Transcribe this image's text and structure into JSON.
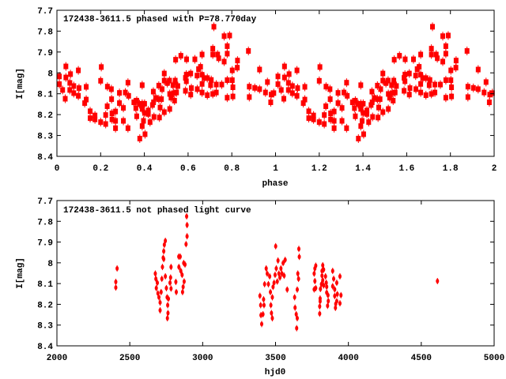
{
  "colors": {
    "points": "#ff0000",
    "axes": "#000000",
    "background": "#ffffff"
  },
  "chart_data": [
    {
      "type": "scatter",
      "title": "172438-3611.5 phased with P=78.770day",
      "xlabel": "phase",
      "ylabel": "I[mag]",
      "xlim": [
        0,
        2
      ],
      "ylim": [
        7.7,
        8.4
      ],
      "y_inverted": true,
      "xticks": [
        "0",
        "0.2",
        "0.4",
        "0.6",
        "0.8",
        "1",
        "1.2",
        "1.4",
        "1.6",
        "1.8",
        "2"
      ],
      "xtick_values": [
        0,
        0.2,
        0.4,
        0.6,
        0.8,
        1,
        1.2,
        1.4,
        1.6,
        1.8,
        2
      ],
      "yticks": [
        "7.7",
        "7.8",
        "7.9",
        "8",
        "8.1",
        "8.2",
        "8.3",
        "8.4"
      ],
      "ytick_values": [
        7.7,
        7.8,
        7.9,
        8.0,
        8.1,
        8.2,
        8.3,
        8.4
      ],
      "grid": false,
      "phase_repeat": 1,
      "points": [
        [
          0.011,
          8.017
        ],
        [
          0.011,
          8.054
        ],
        [
          0.026,
          8.082
        ],
        [
          0.038,
          8.124
        ],
        [
          0.041,
          7.969
        ],
        [
          0.041,
          8.022
        ],
        [
          0.059,
          8.048
        ],
        [
          0.062,
          8.006
        ],
        [
          0.059,
          8.082
        ],
        [
          0.077,
          8.063
        ],
        [
          0.077,
          8.097
        ],
        [
          0.098,
          7.988
        ],
        [
          0.101,
          8.073
        ],
        [
          0.098,
          8.11
        ],
        [
          0.134,
          8.067
        ],
        [
          0.134,
          8.128
        ],
        [
          0.127,
          8.145
        ],
        [
          0.152,
          8.184
        ],
        [
          0.152,
          8.217
        ],
        [
          0.174,
          8.204
        ],
        [
          0.174,
          8.223
        ],
        [
          0.2,
          8.038
        ],
        [
          0.203,
          7.972
        ],
        [
          0.2,
          8.236
        ],
        [
          0.223,
          8.202
        ],
        [
          0.223,
          8.245
        ],
        [
          0.23,
          8.16
        ],
        [
          0.231,
          8.066
        ],
        [
          0.249,
          8.078
        ],
        [
          0.25,
          8.126
        ],
        [
          0.252,
          8.194
        ],
        [
          0.252,
          8.223
        ],
        [
          0.268,
          8.185
        ],
        [
          0.268,
          8.23
        ],
        [
          0.268,
          8.265
        ],
        [
          0.286,
          8.096
        ],
        [
          0.286,
          8.145
        ],
        [
          0.304,
          8.168
        ],
        [
          0.304,
          8.23
        ],
        [
          0.325,
          8.047
        ],
        [
          0.325,
          8.265
        ],
        [
          0.313,
          8.094
        ],
        [
          0.328,
          8.11
        ],
        [
          0.352,
          8.141
        ],
        [
          0.365,
          8.133
        ],
        [
          0.365,
          8.208
        ],
        [
          0.361,
          8.169
        ],
        [
          0.378,
          8.15
        ],
        [
          0.379,
          8.315
        ],
        [
          0.39,
          8.059
        ],
        [
          0.39,
          8.148
        ],
        [
          0.39,
          8.173
        ],
        [
          0.39,
          8.255
        ],
        [
          0.396,
          8.23
        ],
        [
          0.403,
          8.294
        ],
        [
          0.401,
          8.148
        ],
        [
          0.401,
          8.192
        ],
        [
          0.418,
          8.18
        ],
        [
          0.418,
          8.197
        ],
        [
          0.426,
          8.236
        ],
        [
          0.437,
          8.154
        ],
        [
          0.441,
          8.09
        ],
        [
          0.442,
          8.141
        ],
        [
          0.444,
          8.211
        ],
        [
          0.452,
          8.12
        ],
        [
          0.466,
          8.061
        ],
        [
          0.466,
          8.126
        ],
        [
          0.472,
          8.166
        ],
        [
          0.469,
          8.214
        ],
        [
          0.478,
          8.126
        ],
        [
          0.481,
          8.078
        ],
        [
          0.491,
          8.003
        ],
        [
          0.491,
          8.037
        ],
        [
          0.491,
          8.188
        ],
        [
          0.505,
          8.049
        ],
        [
          0.515,
          8.037
        ],
        [
          0.516,
          8.173
        ],
        [
          0.516,
          8.101
        ],
        [
          0.522,
          8.119
        ],
        [
          0.531,
          8.059
        ],
        [
          0.534,
          8.097
        ],
        [
          0.538,
          8.133
        ],
        [
          0.541,
          8.037
        ],
        [
          0.543,
          7.937
        ],
        [
          0.547,
          8.094
        ],
        [
          0.553,
          8.063
        ],
        [
          0.567,
          7.918
        ],
        [
          0.588,
          8.024
        ],
        [
          0.588,
          8.086
        ],
        [
          0.592,
          8.008
        ],
        [
          0.593,
          7.935
        ],
        [
          0.592,
          8.04
        ],
        [
          0.612,
          8.003
        ],
        [
          0.612,
          8.104
        ],
        [
          0.615,
          8.073
        ],
        [
          0.631,
          7.935
        ],
        [
          0.641,
          8.013
        ],
        [
          0.642,
          8.078
        ],
        [
          0.648,
          7.982
        ],
        [
          0.657,
          7.971
        ],
        [
          0.664,
          7.912
        ],
        [
          0.664,
          8.009
        ],
        [
          0.664,
          8.053
        ],
        [
          0.664,
          8.094
        ],
        [
          0.674,
          8.025
        ],
        [
          0.688,
          8.025
        ],
        [
          0.688,
          8.107
        ],
        [
          0.703,
          8.059
        ],
        [
          0.706,
          8.034
        ],
        [
          0.713,
          7.884
        ],
        [
          0.713,
          7.912
        ],
        [
          0.713,
          8.101
        ],
        [
          0.718,
          7.779
        ],
        [
          0.729,
          8.056
        ],
        [
          0.729,
          8.094
        ],
        [
          0.735,
          7.912
        ],
        [
          0.74,
          7.93
        ],
        [
          0.754,
          8.056
        ],
        [
          0.765,
          7.824
        ],
        [
          0.765,
          7.946
        ],
        [
          0.779,
          7.872
        ],
        [
          0.779,
          7.908
        ],
        [
          0.779,
          8.035
        ],
        [
          0.779,
          8.119
        ],
        [
          0.79,
          7.821
        ],
        [
          0.802,
          7.988
        ],
        [
          0.802,
          8.035
        ],
        [
          0.805,
          8.069
        ],
        [
          0.805,
          8.113
        ],
        [
          0.825,
          7.975
        ],
        [
          0.826,
          7.941
        ],
        [
          0.876,
          7.895
        ],
        [
          0.88,
          8.066
        ],
        [
          0.88,
          8.116
        ],
        [
          0.905,
          8.072
        ],
        [
          0.927,
          7.984
        ],
        [
          0.927,
          8.078
        ],
        [
          0.954,
          8.094
        ],
        [
          0.963,
          8.044
        ],
        [
          0.978,
          8.141
        ],
        [
          0.98,
          8.104
        ],
        [
          0.992,
          8.097
        ]
      ]
    },
    {
      "type": "scatter",
      "title": "172438-3611.5 not phased light curve",
      "xlabel": "hjd0",
      "ylabel": "I[mag]",
      "xlim": [
        2000,
        5000
      ],
      "ylim": [
        7.7,
        8.4
      ],
      "y_inverted": true,
      "xticks": [
        "2000",
        "2500",
        "3000",
        "3500",
        "4000",
        "4500",
        "5000"
      ],
      "xtick_values": [
        2000,
        2500,
        3000,
        3500,
        4000,
        4500,
        5000
      ],
      "yticks": [
        "7.7",
        "7.8",
        "7.9",
        "8",
        "8.1",
        "8.2",
        "8.3",
        "8.4"
      ],
      "ytick_values": [
        7.7,
        7.8,
        7.9,
        8.0,
        8.1,
        8.2,
        8.3,
        8.4
      ],
      "grid": false,
      "points": [
        [
          2404,
          8.092
        ],
        [
          2404,
          8.119
        ],
        [
          2413,
          8.027
        ],
        [
          2675,
          8.052
        ],
        [
          2679,
          8.077
        ],
        [
          2682,
          8.122
        ],
        [
          2689,
          8.096
        ],
        [
          2693,
          8.147
        ],
        [
          2700,
          8.166
        ],
        [
          2708,
          8.191
        ],
        [
          2708,
          8.229
        ],
        [
          2715,
          8.141
        ],
        [
          2720,
          8.077
        ],
        [
          2724,
          8.02
        ],
        [
          2729,
          7.976
        ],
        [
          2733,
          7.944
        ],
        [
          2737,
          7.913
        ],
        [
          2744,
          7.894
        ],
        [
          2733,
          7.982
        ],
        [
          2744,
          8.065
        ],
        [
          2751,
          8.122
        ],
        [
          2756,
          8.166
        ],
        [
          2760,
          8.204
        ],
        [
          2762,
          8.242
        ],
        [
          2758,
          8.267
        ],
        [
          2765,
          8.173
        ],
        [
          2776,
          8.096
        ],
        [
          2780,
          8.071
        ],
        [
          2783,
          8.02
        ],
        [
          2783,
          8.124
        ],
        [
          2816,
          8.092
        ],
        [
          2819,
          8.141
        ],
        [
          2836,
          7.97
        ],
        [
          2837,
          8.02
        ],
        [
          2846,
          7.97
        ],
        [
          2850,
          8.039
        ],
        [
          2859,
          8.058
        ],
        [
          2862,
          8.141
        ],
        [
          2866,
          8.116
        ],
        [
          2870,
          8.001
        ],
        [
          2873,
          8.09
        ],
        [
          2879,
          8.008
        ],
        [
          2886,
          7.91
        ],
        [
          2893,
          7.872
        ],
        [
          2893,
          7.818
        ],
        [
          2890,
          7.776
        ],
        [
          3393,
          8.159
        ],
        [
          3398,
          8.204
        ],
        [
          3400,
          8.252
        ],
        [
          3405,
          8.295
        ],
        [
          3414,
          8.248
        ],
        [
          3418,
          8.176
        ],
        [
          3421,
          8.204
        ],
        [
          3425,
          8.103
        ],
        [
          3436,
          8.027
        ],
        [
          3443,
          8.052
        ],
        [
          3451,
          8.103
        ],
        [
          3460,
          8.065
        ],
        [
          3465,
          8.141
        ],
        [
          3468,
          8.204
        ],
        [
          3472,
          8.242
        ],
        [
          3478,
          8.267
        ],
        [
          3478,
          8.166
        ],
        [
          3483,
          8.116
        ],
        [
          3490,
          8.096
        ],
        [
          3497,
          8.058
        ],
        [
          3501,
          7.92
        ],
        [
          3505,
          8.027
        ],
        [
          3512,
          8.09
        ],
        [
          3517,
          7.989
        ],
        [
          3523,
          8.052
        ],
        [
          3530,
          8.071
        ],
        [
          3537,
          8.027
        ],
        [
          3544,
          8.052
        ],
        [
          3552,
          8.001
        ],
        [
          3559,
          8.062
        ],
        [
          3566,
          7.986
        ],
        [
          3580,
          8.129
        ],
        [
          3631,
          8.166
        ],
        [
          3634,
          8.216
        ],
        [
          3642,
          8.248
        ],
        [
          3645,
          8.315
        ],
        [
          3649,
          8.267
        ],
        [
          3649,
          8.129
        ],
        [
          3653,
          8.052
        ],
        [
          3658,
          8.077
        ],
        [
          3660,
          7.933
        ],
        [
          3663,
          7.971
        ],
        [
          3765,
          8.052
        ],
        [
          3770,
          8.027
        ],
        [
          3776,
          8.014
        ],
        [
          3770,
          8.088
        ],
        [
          3765,
          8.128
        ],
        [
          3776,
          8.122
        ],
        [
          3806,
          8.172
        ],
        [
          3806,
          8.185
        ],
        [
          3803,
          8.21
        ],
        [
          3803,
          8.245
        ],
        [
          3808,
          8.126
        ],
        [
          3824,
          8.012
        ],
        [
          3830,
          8.033
        ],
        [
          3819,
          8.039
        ],
        [
          3819,
          8.062
        ],
        [
          3824,
          8.084
        ],
        [
          3815,
          8.103
        ],
        [
          3830,
          8.109
        ],
        [
          3843,
          8.065
        ],
        [
          3848,
          8.096
        ],
        [
          3851,
          8.115
        ],
        [
          3851,
          8.143
        ],
        [
          3860,
          8.156
        ],
        [
          3862,
          8.184
        ],
        [
          3857,
          8.207
        ],
        [
          3892,
          8.039
        ],
        [
          3899,
          8.077
        ],
        [
          3892,
          8.113
        ],
        [
          3906,
          8.128
        ],
        [
          3906,
          8.16
        ],
        [
          3920,
          8.096
        ],
        [
          3924,
          8.151
        ],
        [
          3920,
          8.185
        ],
        [
          3913,
          8.198
        ],
        [
          3911,
          8.217
        ],
        [
          3942,
          8.065
        ],
        [
          3949,
          8.156
        ],
        [
          3942,
          8.195
        ],
        [
          4611,
          8.088
        ]
      ]
    }
  ]
}
